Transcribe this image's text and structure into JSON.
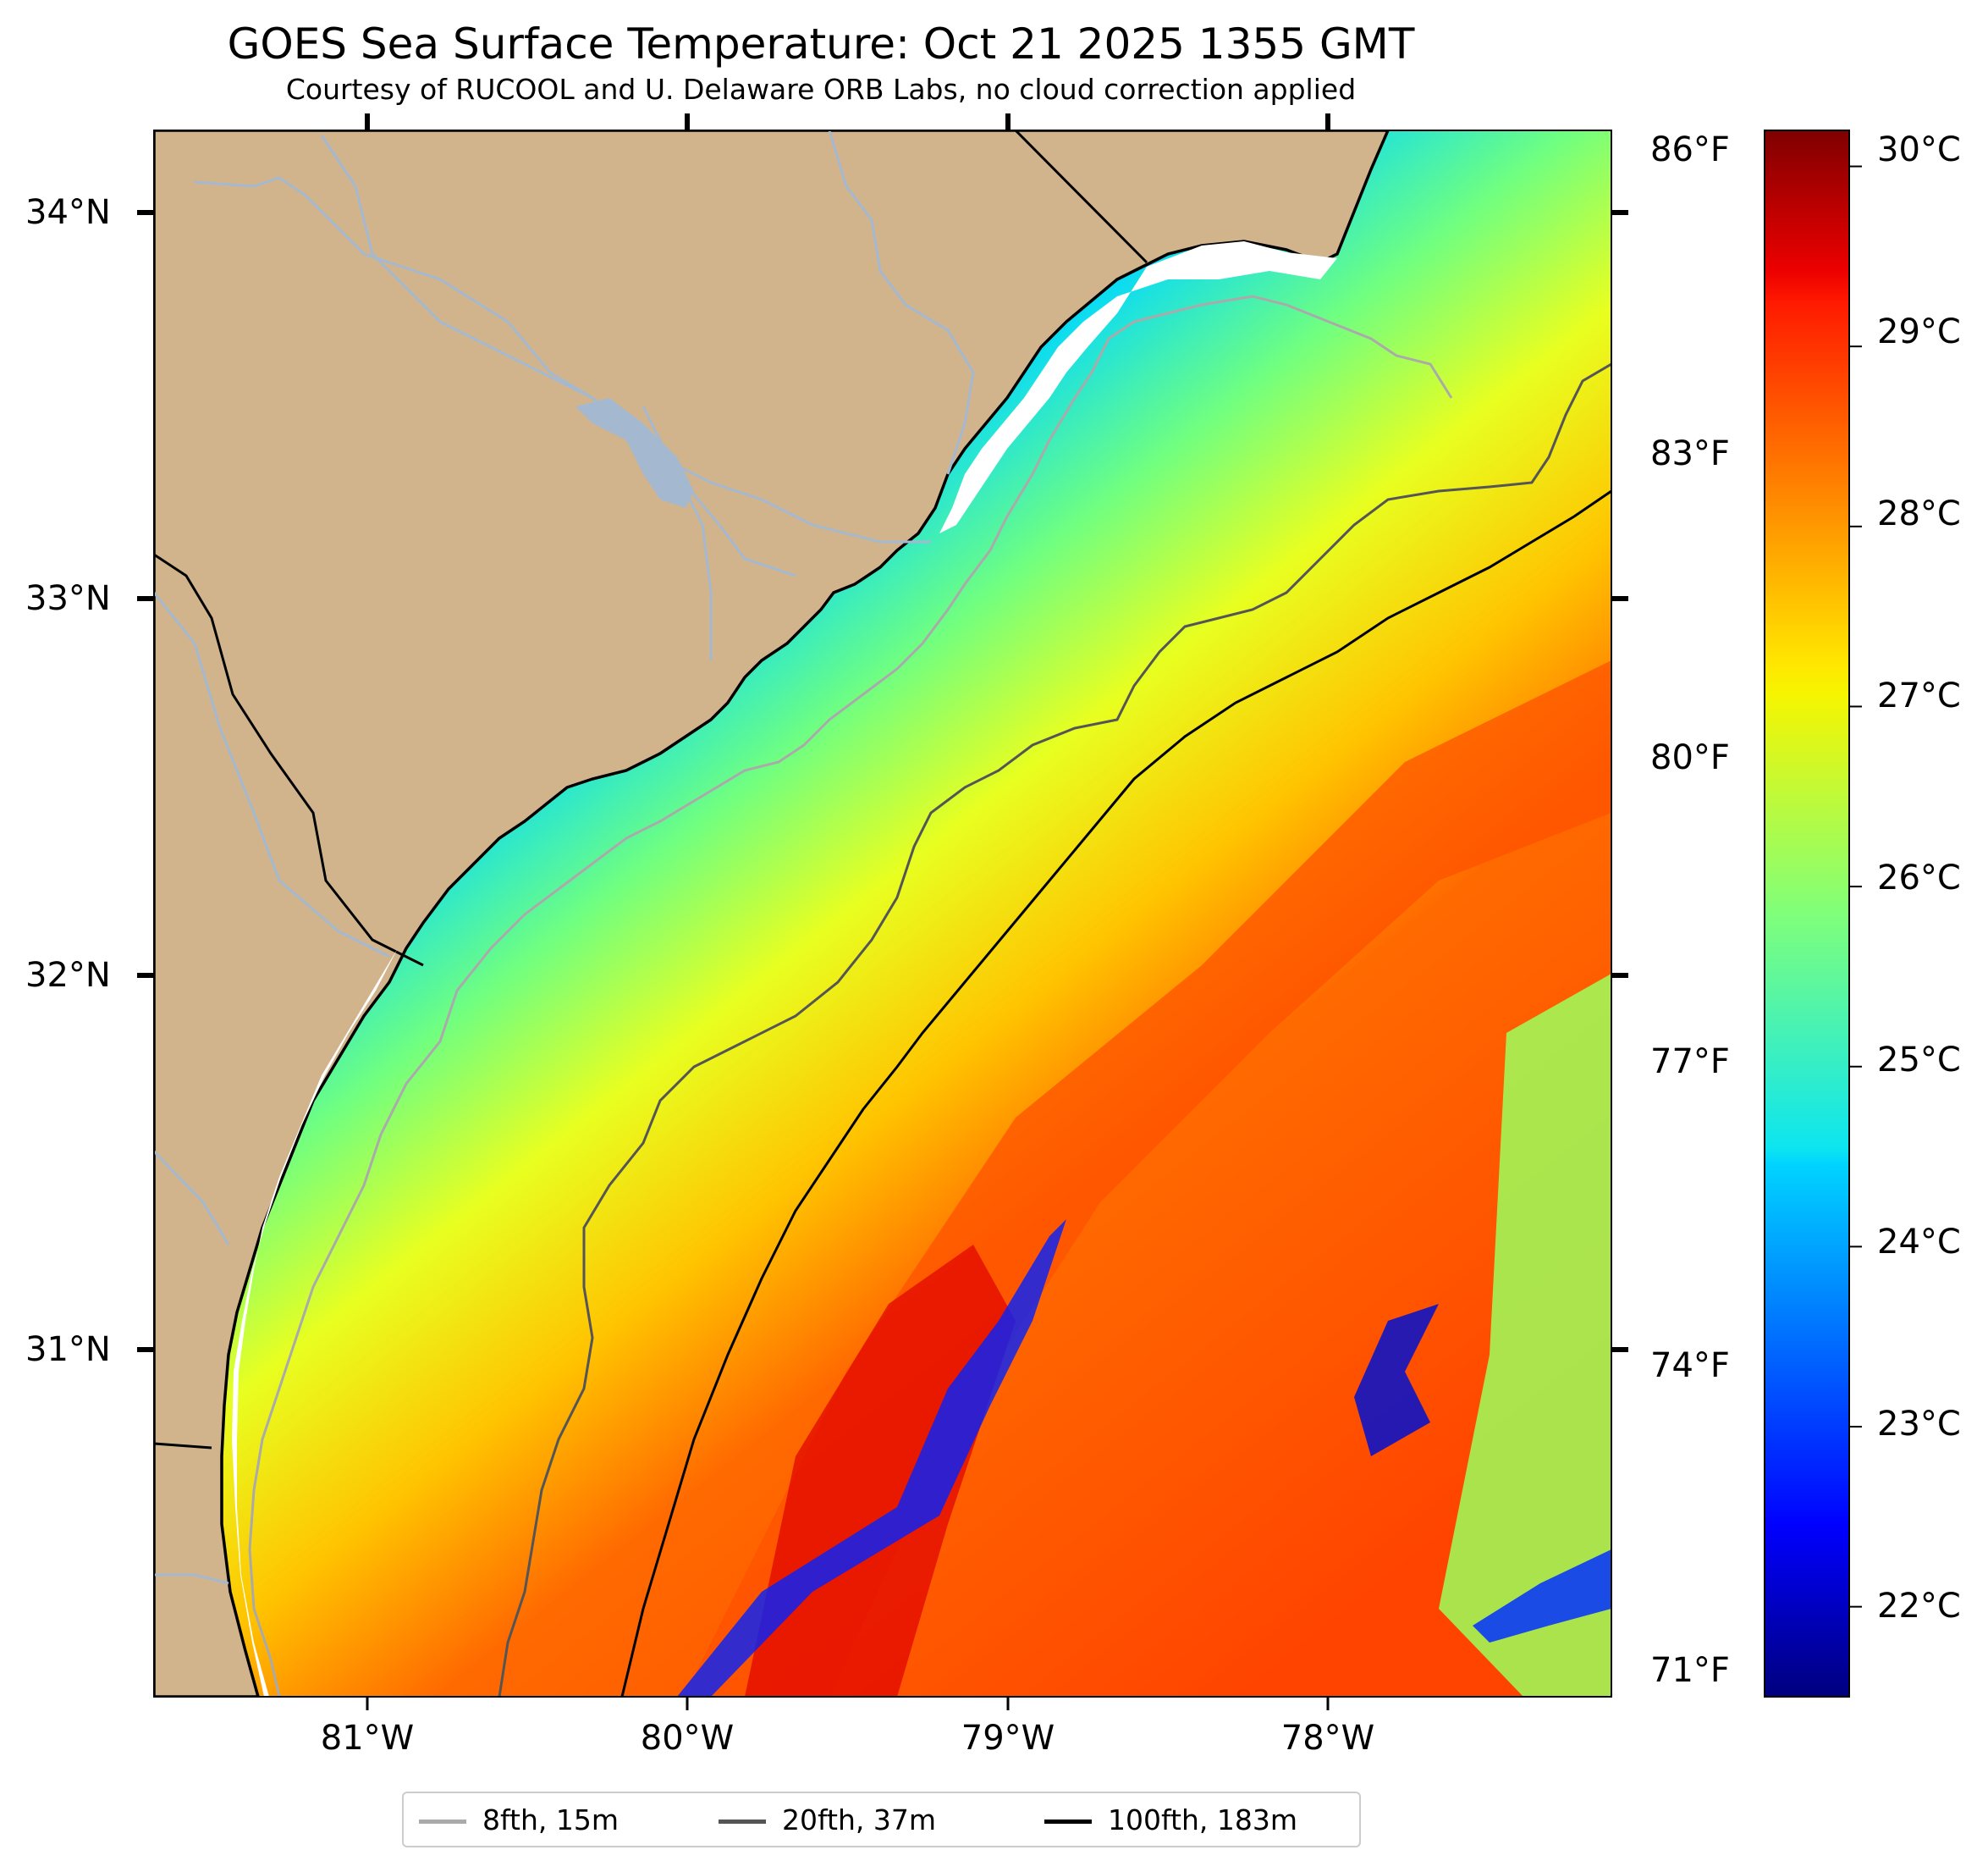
{
  "title": "GOES Sea Surface Temperature: Oct 21 2025 1355 GMT",
  "subtitle": "Courtesy of RUCOOL and U. Delaware ORB Labs, no cloud correction applied",
  "colors": {
    "land": "#d2b48c",
    "river": "#a4b8d0",
    "coast": "#000000",
    "iso_8fth": "#aaaaaa",
    "iso_20fth": "#555555",
    "iso_100fth": "#000000"
  },
  "map": {
    "lat_labels": [
      "34°N",
      "33°N",
      "32°N",
      "31°N"
    ],
    "lon_labels": [
      "81°W",
      "80°W",
      "79°W",
      "78°W"
    ]
  },
  "colorbar": {
    "colormap": "jet",
    "min_c": 21.5,
    "max_c": 30.2,
    "celsius_labels": [
      "30°C",
      "29°C",
      "28°C",
      "27°C",
      "26°C",
      "25°C",
      "24°C",
      "23°C",
      "22°C"
    ],
    "fahrenheit_labels": [
      "86°F",
      "83°F",
      "80°F",
      "77°F",
      "74°F",
      "71°F"
    ]
  },
  "legend": [
    {
      "label": "8fth, 15m",
      "color": "#aaaaaa"
    },
    {
      "label": "20fth, 37m",
      "color": "#555555"
    },
    {
      "label": "100fth, 183m",
      "color": "#000000"
    }
  ]
}
